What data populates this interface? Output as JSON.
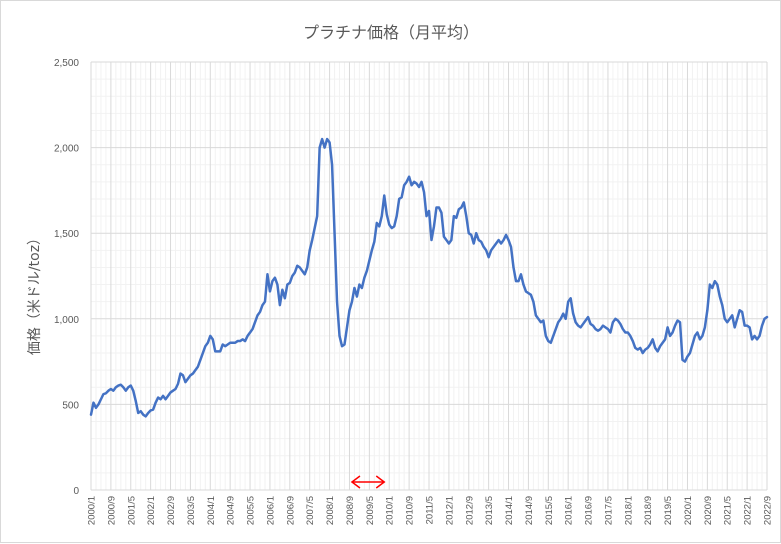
{
  "chart_data": {
    "type": "line",
    "title": "プラチナ価格（月平均）",
    "ylabel": "価格（米ドル/toz）",
    "xlabel": "",
    "ylim": [
      0,
      2500
    ],
    "ytick_step": 500,
    "ytick_labels": [
      "0",
      "500",
      "1,000",
      "1,500",
      "2,000",
      "2,500"
    ],
    "x_start": "2000/1",
    "x_tick_labels": [
      "2000/1",
      "2000/9",
      "2001/5",
      "2002/1",
      "2002/9",
      "2003/5",
      "2004/1",
      "2004/9",
      "2005/5",
      "2006/1",
      "2006/9",
      "2007/5",
      "2008/1",
      "2008/9",
      "2009/5",
      "2010/1",
      "2010/9",
      "2011/5",
      "2012/1",
      "2012/9",
      "2013/5",
      "2014/1",
      "2014/9",
      "2015/5",
      "2016/1",
      "2016/9",
      "2017/5",
      "2018/1",
      "2018/9",
      "2019/5",
      "2020/1",
      "2020/9",
      "2021/5",
      "2022/1",
      "2022/9"
    ],
    "grid": true,
    "legend": "none",
    "line_color": "#4472c4",
    "annotation": {
      "type": "double-arrow",
      "color": "#ff0000",
      "from": "2008/10",
      "to": "2009/11"
    },
    "series": [
      {
        "values": [
          440,
          510,
          480,
          500,
          530,
          560,
          565,
          580,
          590,
          580,
          600,
          610,
          615,
          600,
          580,
          600,
          610,
          580,
          520,
          450,
          460,
          440,
          430,
          450,
          465,
          470,
          510,
          540,
          530,
          550,
          530,
          550,
          570,
          580,
          590,
          620,
          680,
          670,
          630,
          650,
          670,
          680,
          700,
          720,
          760,
          800,
          840,
          860,
          900,
          880,
          810,
          810,
          810,
          850,
          840,
          850,
          860,
          860,
          860,
          870,
          870,
          880,
          870,
          900,
          920,
          940,
          980,
          1020,
          1040,
          1080,
          1100,
          1260,
          1160,
          1220,
          1240,
          1200,
          1080,
          1170,
          1120,
          1200,
          1210,
          1250,
          1270,
          1310,
          1300,
          1280,
          1260,
          1300,
          1400,
          1460,
          1530,
          1600,
          2000,
          2050,
          2000,
          2050,
          2030,
          1900,
          1500,
          1100,
          900,
          840,
          850,
          950,
          1050,
          1100,
          1180,
          1130,
          1200,
          1180,
          1240,
          1280,
          1340,
          1400,
          1450,
          1560,
          1540,
          1600,
          1720,
          1610,
          1550,
          1530,
          1540,
          1600,
          1700,
          1710,
          1780,
          1800,
          1830,
          1780,
          1800,
          1790,
          1770,
          1800,
          1740,
          1600,
          1630,
          1460,
          1540,
          1650,
          1650,
          1620,
          1480,
          1460,
          1440,
          1460,
          1600,
          1590,
          1640,
          1650,
          1680,
          1600,
          1500,
          1490,
          1440,
          1500,
          1460,
          1450,
          1420,
          1400,
          1360,
          1400,
          1420,
          1440,
          1460,
          1440,
          1460,
          1490,
          1460,
          1420,
          1300,
          1220,
          1220,
          1260,
          1200,
          1160,
          1150,
          1140,
          1100,
          1020,
          1000,
          980,
          990,
          900,
          870,
          860,
          900,
          940,
          980,
          1000,
          1030,
          1000,
          1100,
          1120,
          1030,
          980,
          960,
          950,
          970,
          990,
          1010,
          970,
          960,
          940,
          930,
          940,
          960,
          950,
          940,
          920,
          980,
          1000,
          990,
          970,
          940,
          920,
          920,
          900,
          870,
          830,
          820,
          830,
          800,
          820,
          830,
          850,
          880,
          830,
          810,
          840,
          860,
          880,
          950,
          900,
          920,
          960,
          990,
          980,
          760,
          750,
          780,
          800,
          850,
          900,
          920,
          880,
          900,
          950,
          1050,
          1200,
          1180,
          1220,
          1200,
          1130,
          1080,
          1000,
          980,
          1000,
          1020,
          950,
          1000,
          1050,
          1040,
          960,
          960,
          950,
          880,
          900,
          880,
          900,
          960,
          1000,
          1010
        ]
      }
    ]
  }
}
